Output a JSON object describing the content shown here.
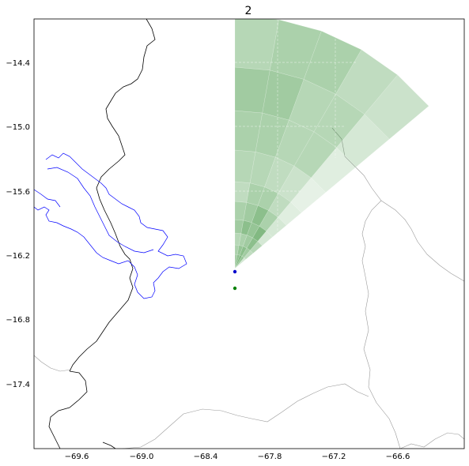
{
  "title": "2",
  "x_ticks": [
    {
      "value": -69.6,
      "label": "−69.6"
    },
    {
      "value": -69.0,
      "label": "−69.0"
    },
    {
      "value": -68.4,
      "label": "−68.4"
    },
    {
      "value": -67.8,
      "label": "−67.8"
    },
    {
      "value": -67.2,
      "label": "−67.2"
    },
    {
      "value": -66.6,
      "label": "−66.6"
    }
  ],
  "y_ticks": [
    {
      "value": -14.4,
      "label": "−14.4"
    },
    {
      "value": -15.0,
      "label": "−15.0"
    },
    {
      "value": -15.6,
      "label": "−15.6"
    },
    {
      "value": -16.2,
      "label": "−16.2"
    },
    {
      "value": -16.8,
      "label": "−16.8"
    },
    {
      "value": -17.4,
      "label": "−17.4"
    }
  ],
  "extent": {
    "lon": [
      -70.0,
      -65.98
    ],
    "lat": [
      -18.05,
      -14.0
    ]
  },
  "colors": {
    "sector_fill": "#2e8b2e",
    "radar_site": "#0000cc",
    "secondary_site": "#008000",
    "lake_outline": "#0000ff",
    "border_outline": "#000000",
    "region_outline": "#999999"
  },
  "markers": [
    {
      "name": "radar-site",
      "lon": -68.13,
      "lat": -16.45,
      "color": "#0000cc"
    },
    {
      "name": "secondary-site",
      "lon": -68.13,
      "lat": -16.61,
      "color": "#008000"
    }
  ],
  "radar": {
    "origin": {
      "lon": -68.13,
      "lat": -16.38
    },
    "azimuth_start_deg": 0,
    "azimuth_step_deg": 10,
    "sectors": 5,
    "range_bins_per_sector": 10,
    "alpha": [
      [
        0.45,
        0.4,
        0.35,
        0.45,
        0.4,
        0.3,
        0.35,
        0.4,
        0.45,
        0.35
      ],
      [
        0.55,
        0.5,
        0.4,
        0.55,
        0.45,
        0.4,
        0.35,
        0.4,
        0.45,
        0.4
      ],
      [
        0.6,
        0.55,
        0.45,
        0.5,
        0.55,
        0.4,
        0.3,
        0.35,
        0.35,
        0.4
      ],
      [
        0.5,
        0.45,
        0.55,
        0.6,
        0.4,
        0.3,
        0.25,
        0.35,
        0.35,
        0.3
      ],
      [
        0.2,
        0.3,
        0.35,
        0.2,
        0.2,
        0.15,
        0.12,
        0.15,
        0.2,
        0.25
      ]
    ]
  }
}
